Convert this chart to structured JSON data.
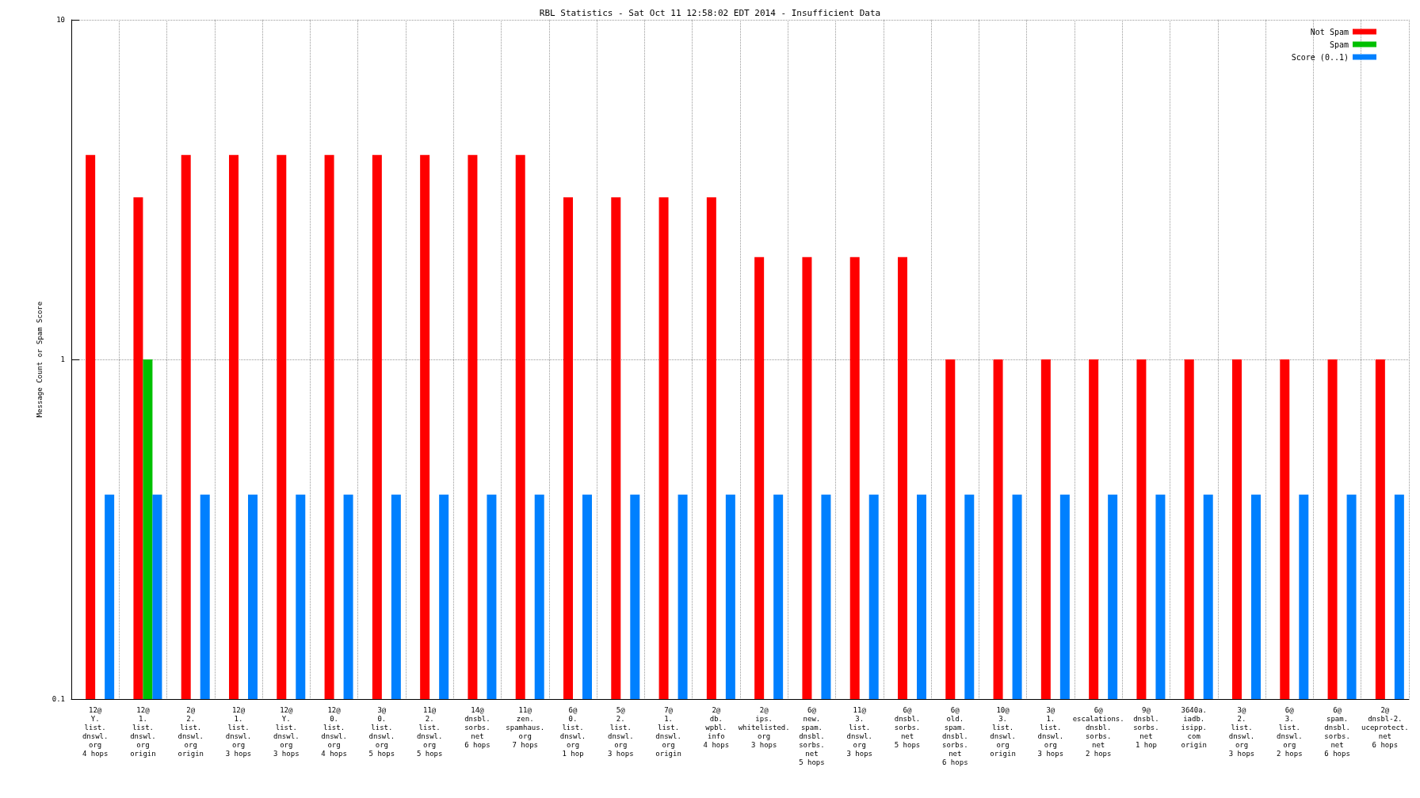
{
  "chart_data": {
    "type": "bar",
    "title": "RBL Statistics - Sat Oct 11 12:58:02 EDT 2014 - Insufficient Data",
    "ylabel": "Message Count or Spam Score",
    "categories": [
      "12@\nY.\nlist.\ndnswl.\norg\n4 hops",
      "12@\n1.\nlist.\ndnswl.\norg\norigin",
      "2@\n2.\nlist.\ndnswl.\norg\norigin",
      "12@\n1.\nlist.\ndnswl.\norg\n3 hops",
      "12@\nY.\nlist.\ndnswl.\norg\n3 hops",
      "12@\n0.\nlist.\ndnswl.\norg\n4 hops",
      "3@\n0.\nlist.\ndnswl.\norg\n5 hops",
      "11@\n2.\nlist.\ndnswl.\norg\n5 hops",
      "14@\ndnsbl.\nsorbs.\nnet\n6 hops",
      "11@\nzen.\nspamhaus.\norg\n7 hops",
      "6@\n0.\nlist.\ndnswl.\norg\n1 hop",
      "5@\n2.\nlist.\ndnswl.\norg\n3 hops",
      "7@\n1.\nlist.\ndnswl.\norg\norigin",
      "2@\ndb.\nwpbl.\ninfo\n4 hops",
      "2@\nips.\nwhitelisted.\norg\n3 hops",
      "6@\nnew.\nspam.\ndnsbl.\nsorbs.\nnet\n5 hops",
      "11@\n3.\nlist.\ndnswl.\norg\n3 hops",
      "6@\ndnsbl.\nsorbs.\nnet\n5 hops",
      "6@\nold.\nspam.\ndnsbl.\nsorbs.\nnet\n6 hops",
      "10@\n3.\nlist.\ndnswl.\norg\norigin",
      "3@\n1.\nlist.\ndnswl.\norg\n3 hops",
      "6@\nescalations.\ndnsbl.\nsorbs.\nnet\n2 hops",
      "9@\ndnsbl.\nsorbs.\nnet\n1 hop",
      "3640a.\niadb.\nisipp.\ncom\norigin",
      "3@\n2.\nlist.\ndnswl.\norg\n3 hops",
      "6@\n3.\nlist.\ndnswl.\norg\n2 hops",
      "6@\nspam.\ndnsbl.\nsorbs.\nnet\n6 hops",
      "2@\ndnsbl-2.\nuceprotect.\nnet\n6 hops"
    ],
    "series": [
      {
        "name": "Not Spam",
        "color": "#ff0000",
        "values": [
          4,
          3,
          4,
          4,
          4,
          4,
          4,
          4,
          4,
          4,
          3,
          3,
          3,
          3,
          2,
          2,
          2,
          2,
          1,
          1,
          1,
          1,
          1,
          1,
          1,
          1,
          1,
          1
        ]
      },
      {
        "name": "Spam",
        "color": "#00c000",
        "values": [
          null,
          1,
          null,
          null,
          null,
          null,
          null,
          null,
          null,
          null,
          null,
          null,
          null,
          null,
          null,
          null,
          null,
          null,
          null,
          null,
          null,
          null,
          null,
          null,
          null,
          null,
          null,
          null
        ]
      },
      {
        "name": "Score (0..1)",
        "color": "#0080ff",
        "values": [
          0.4,
          0.4,
          0.4,
          0.4,
          0.4,
          0.4,
          0.4,
          0.4,
          0.4,
          0.4,
          0.4,
          0.4,
          0.4,
          0.4,
          0.4,
          0.4,
          0.4,
          0.4,
          0.4,
          0.4,
          0.4,
          0.4,
          0.4,
          0.4,
          0.4,
          0.4,
          0.4,
          0.4
        ]
      }
    ],
    "log": true,
    "ylim": [
      0.1,
      10
    ],
    "yticks": [
      0.1,
      1,
      10
    ],
    "grid": true,
    "legend": "top right"
  }
}
